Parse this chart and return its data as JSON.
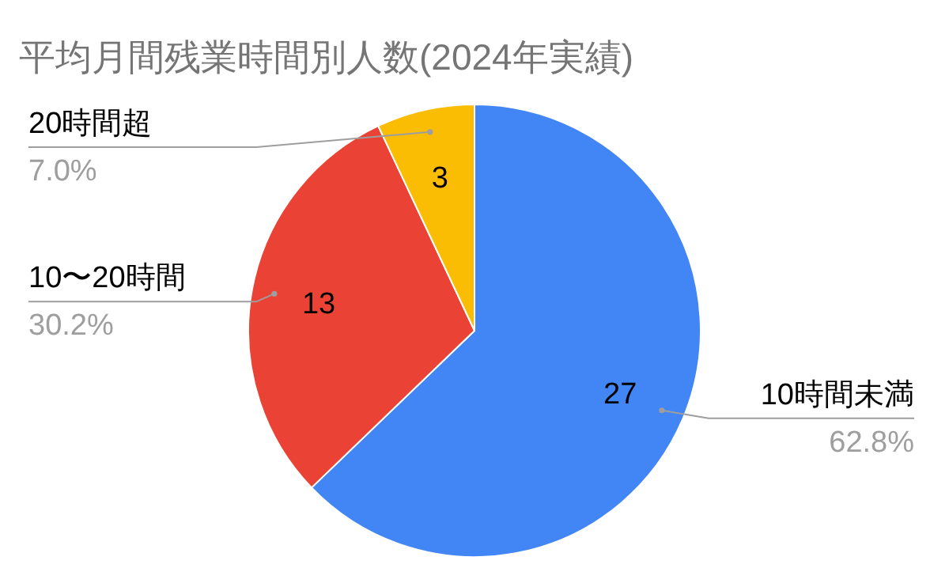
{
  "chart_data": {
    "type": "pie",
    "title": "平均月間残業時間別人数(2024年実績)",
    "categories": [
      "10時間未満",
      "10〜20時間",
      "20時間超"
    ],
    "values": [
      62.8,
      30.2,
      7.0
    ],
    "colors": [
      "#4285f4",
      "#ea4335",
      "#fbbc04"
    ],
    "value_labels": [
      "62.8%",
      "30.2%",
      "7.0%"
    ],
    "annotations": [
      "27",
      "13",
      "3"
    ]
  }
}
